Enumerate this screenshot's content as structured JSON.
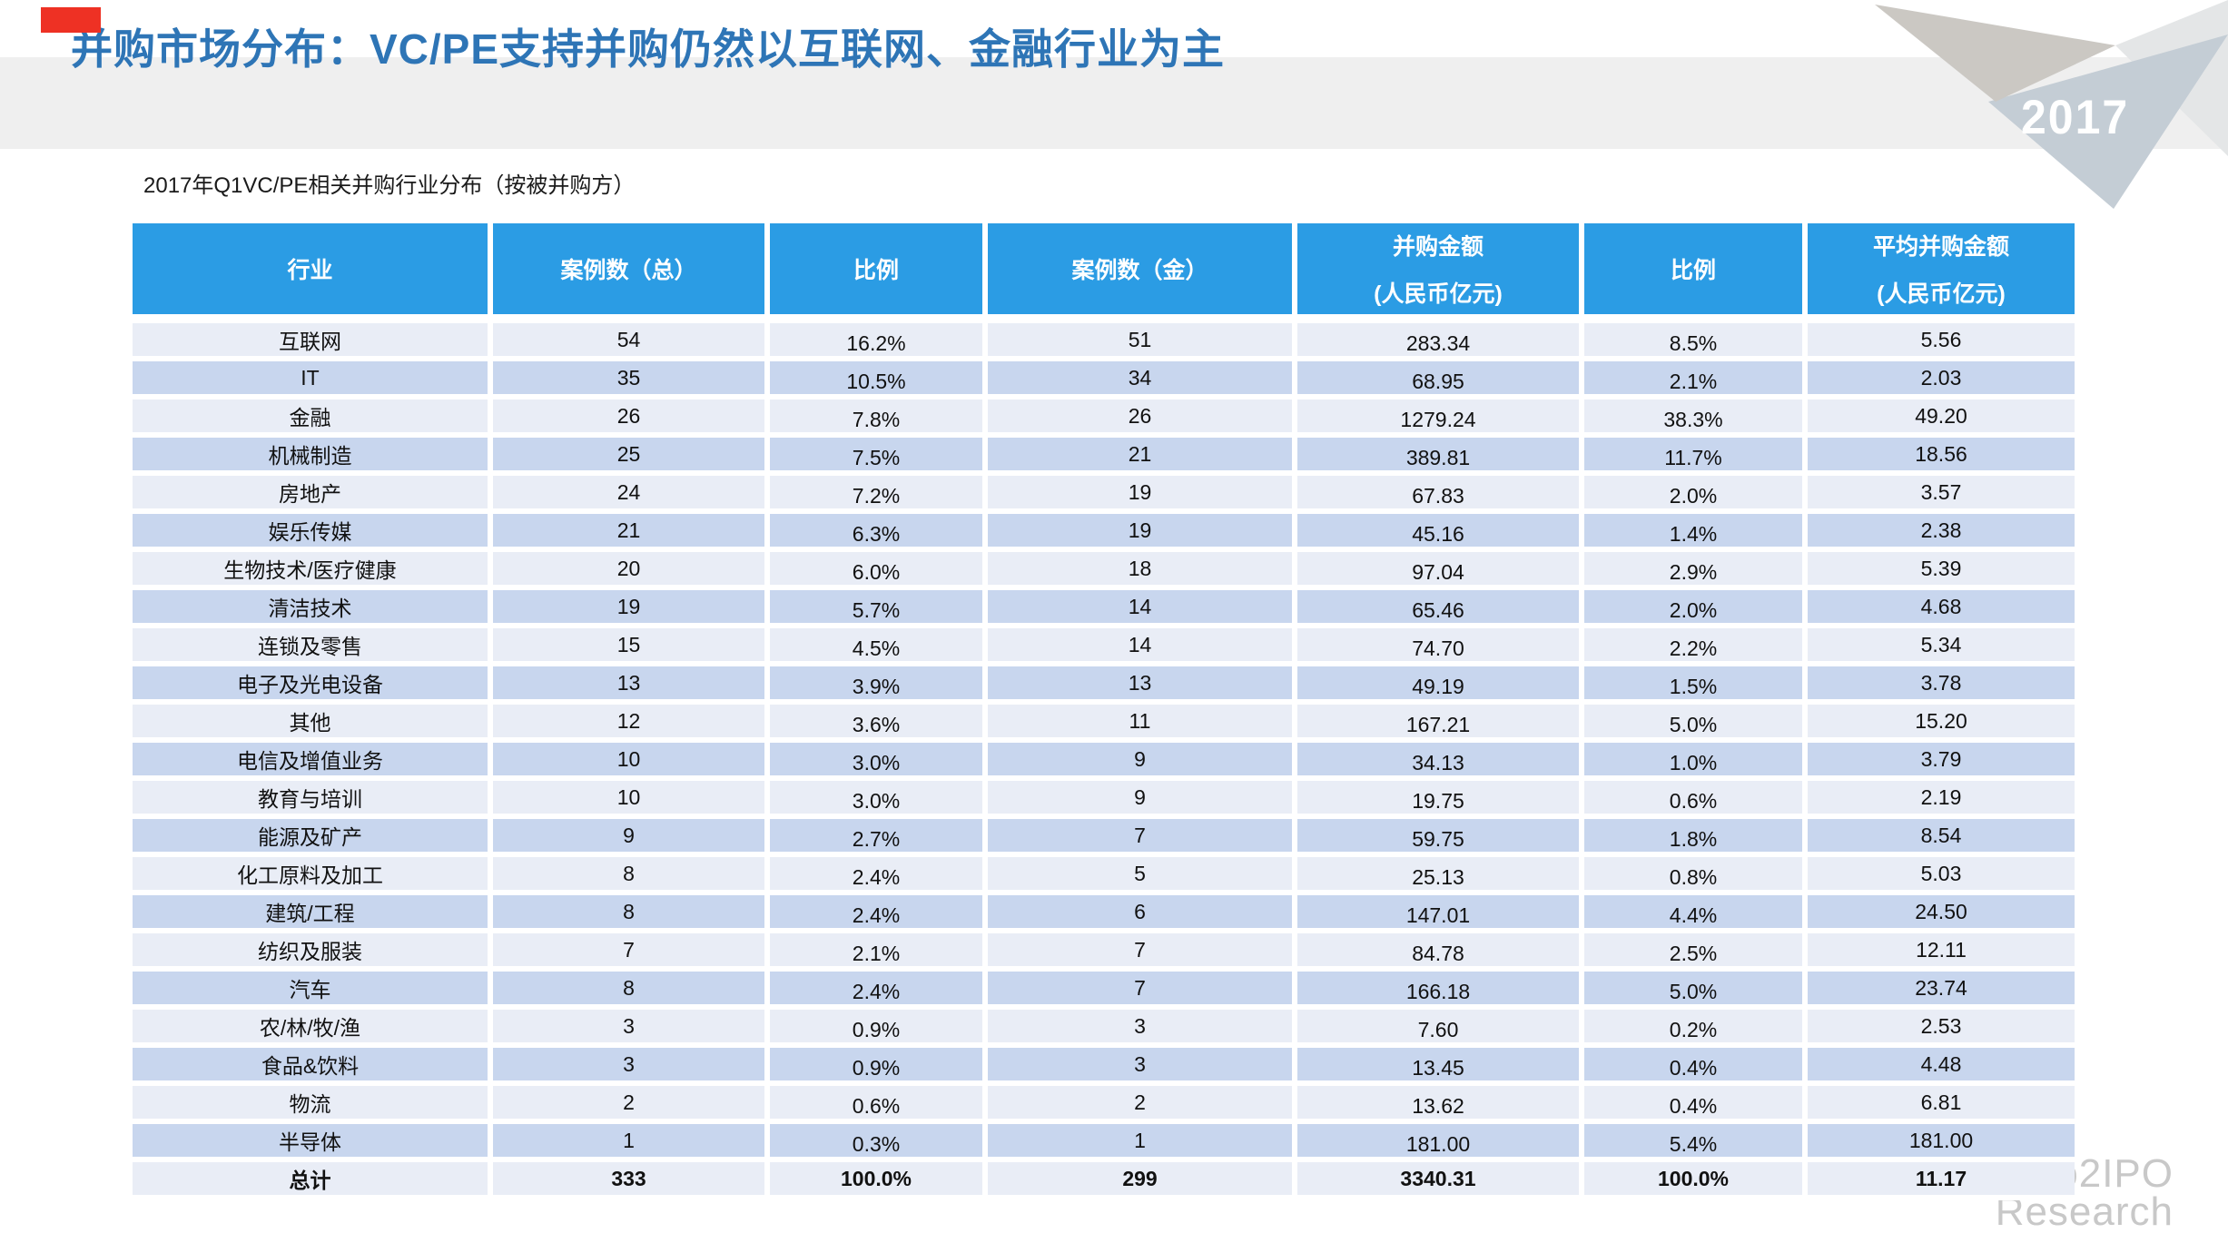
{
  "slide": {
    "title": "并购市场分布：VC/PE支持并购仍然以互联网、金融行业为主",
    "subtitle": "2017年Q1VC/PE相关并购行业分布（按被并购方）",
    "year_badge": "2017",
    "watermark_line1": "Zero2IPO",
    "watermark_line2": "Research"
  },
  "colors": {
    "header_bg": "#2b9ce4",
    "row_light": "#e9edf6",
    "row_dark": "#c8d6ee",
    "title": "#2e75b6",
    "band": "#efefef",
    "accent_red": "#ee3124",
    "watermark": "#c8c8c8",
    "tri_blue": "#c4cdd5",
    "tri_warm": "#cbc8c3",
    "tri_light": "#e4e6e7",
    "year_text": "#ffffff"
  },
  "table": {
    "headers": [
      {
        "label": "行业",
        "sub": ""
      },
      {
        "label": "案例数（总）",
        "sub": ""
      },
      {
        "label": "比例",
        "sub": ""
      },
      {
        "label": "案例数（金）",
        "sub": ""
      },
      {
        "label": "并购金额",
        "sub": "(人民币亿元)"
      },
      {
        "label": "比例",
        "sub": ""
      },
      {
        "label": "平均并购金额",
        "sub": "(人民币亿元)"
      }
    ],
    "rows": [
      [
        "互联网",
        "54",
        "16.2%",
        "51",
        "283.34",
        "8.5%",
        "5.56"
      ],
      [
        "IT",
        "35",
        "10.5%",
        "34",
        "68.95",
        "2.1%",
        "2.03"
      ],
      [
        "金融",
        "26",
        "7.8%",
        "26",
        "1279.24",
        "38.3%",
        "49.20"
      ],
      [
        "机械制造",
        "25",
        "7.5%",
        "21",
        "389.81",
        "11.7%",
        "18.56"
      ],
      [
        "房地产",
        "24",
        "7.2%",
        "19",
        "67.83",
        "2.0%",
        "3.57"
      ],
      [
        "娱乐传媒",
        "21",
        "6.3%",
        "19",
        "45.16",
        "1.4%",
        "2.38"
      ],
      [
        "生物技术/医疗健康",
        "20",
        "6.0%",
        "18",
        "97.04",
        "2.9%",
        "5.39"
      ],
      [
        "清洁技术",
        "19",
        "5.7%",
        "14",
        "65.46",
        "2.0%",
        "4.68"
      ],
      [
        "连锁及零售",
        "15",
        "4.5%",
        "14",
        "74.70",
        "2.2%",
        "5.34"
      ],
      [
        "电子及光电设备",
        "13",
        "3.9%",
        "13",
        "49.19",
        "1.5%",
        "3.78"
      ],
      [
        "其他",
        "12",
        "3.6%",
        "11",
        "167.21",
        "5.0%",
        "15.20"
      ],
      [
        "电信及增值业务",
        "10",
        "3.0%",
        "9",
        "34.13",
        "1.0%",
        "3.79"
      ],
      [
        "教育与培训",
        "10",
        "3.0%",
        "9",
        "19.75",
        "0.6%",
        "2.19"
      ],
      [
        "能源及矿产",
        "9",
        "2.7%",
        "7",
        "59.75",
        "1.8%",
        "8.54"
      ],
      [
        "化工原料及加工",
        "8",
        "2.4%",
        "5",
        "25.13",
        "0.8%",
        "5.03"
      ],
      [
        "建筑/工程",
        "8",
        "2.4%",
        "6",
        "147.01",
        "4.4%",
        "24.50"
      ],
      [
        "纺织及服装",
        "7",
        "2.1%",
        "7",
        "84.78",
        "2.5%",
        "12.11"
      ],
      [
        "汽车",
        "8",
        "2.4%",
        "7",
        "166.18",
        "5.0%",
        "23.74"
      ],
      [
        "农/林/牧/渔",
        "3",
        "0.9%",
        "3",
        "7.60",
        "0.2%",
        "2.53"
      ],
      [
        "食品&饮料",
        "3",
        "0.9%",
        "3",
        "13.45",
        "0.4%",
        "4.48"
      ],
      [
        "物流",
        "2",
        "0.6%",
        "2",
        "13.62",
        "0.4%",
        "6.81"
      ],
      [
        "半导体",
        "1",
        "0.3%",
        "1",
        "181.00",
        "5.4%",
        "181.00"
      ]
    ],
    "total_row": [
      "总计",
      "333",
      "100.0%",
      "299",
      "3340.31",
      "100.0%",
      "11.17"
    ]
  },
  "chart_data": {
    "type": "table",
    "title": "2017年Q1VC/PE相关并购行业分布（按被并购方）",
    "columns": [
      "行业",
      "案例数（总）",
      "比例",
      "案例数（金）",
      "并购金额(人民币亿元)",
      "比例",
      "平均并购金额(人民币亿元)"
    ],
    "rows": [
      [
        "互联网",
        54,
        "16.2%",
        51,
        283.34,
        "8.5%",
        5.56
      ],
      [
        "IT",
        35,
        "10.5%",
        34,
        68.95,
        "2.1%",
        2.03
      ],
      [
        "金融",
        26,
        "7.8%",
        26,
        1279.24,
        "38.3%",
        49.2
      ],
      [
        "机械制造",
        25,
        "7.5%",
        21,
        389.81,
        "11.7%",
        18.56
      ],
      [
        "房地产",
        24,
        "7.2%",
        19,
        67.83,
        "2.0%",
        3.57
      ],
      [
        "娱乐传媒",
        21,
        "6.3%",
        19,
        45.16,
        "1.4%",
        2.38
      ],
      [
        "生物技术/医疗健康",
        20,
        "6.0%",
        18,
        97.04,
        "2.9%",
        5.39
      ],
      [
        "清洁技术",
        19,
        "5.7%",
        14,
        65.46,
        "2.0%",
        4.68
      ],
      [
        "连锁及零售",
        15,
        "4.5%",
        14,
        74.7,
        "2.2%",
        5.34
      ],
      [
        "电子及光电设备",
        13,
        "3.9%",
        13,
        49.19,
        "1.5%",
        3.78
      ],
      [
        "其他",
        12,
        "3.6%",
        11,
        167.21,
        "5.0%",
        15.2
      ],
      [
        "电信及增值业务",
        10,
        "3.0%",
        9,
        34.13,
        "1.0%",
        3.79
      ],
      [
        "教育与培训",
        10,
        "3.0%",
        9,
        19.75,
        "0.6%",
        2.19
      ],
      [
        "能源及矿产",
        9,
        "2.7%",
        7,
        59.75,
        "1.8%",
        8.54
      ],
      [
        "化工原料及加工",
        8,
        "2.4%",
        5,
        25.13,
        "0.8%",
        5.03
      ],
      [
        "建筑/工程",
        8,
        "2.4%",
        6,
        147.01,
        "4.4%",
        24.5
      ],
      [
        "纺织及服装",
        7,
        "2.1%",
        7,
        84.78,
        "2.5%",
        12.11
      ],
      [
        "汽车",
        8,
        "2.4%",
        7,
        166.18,
        "5.0%",
        23.74
      ],
      [
        "农/林/牧/渔",
        3,
        "0.9%",
        3,
        7.6,
        "0.2%",
        2.53
      ],
      [
        "食品&饮料",
        3,
        "0.9%",
        3,
        13.45,
        "0.4%",
        4.48
      ],
      [
        "物流",
        2,
        "0.6%",
        2,
        13.62,
        "0.4%",
        6.81
      ],
      [
        "半导体",
        1,
        "0.3%",
        1,
        181.0,
        "5.4%",
        181.0
      ],
      [
        "总计",
        333,
        "100.0%",
        299,
        3340.31,
        "100.0%",
        11.17
      ]
    ]
  }
}
